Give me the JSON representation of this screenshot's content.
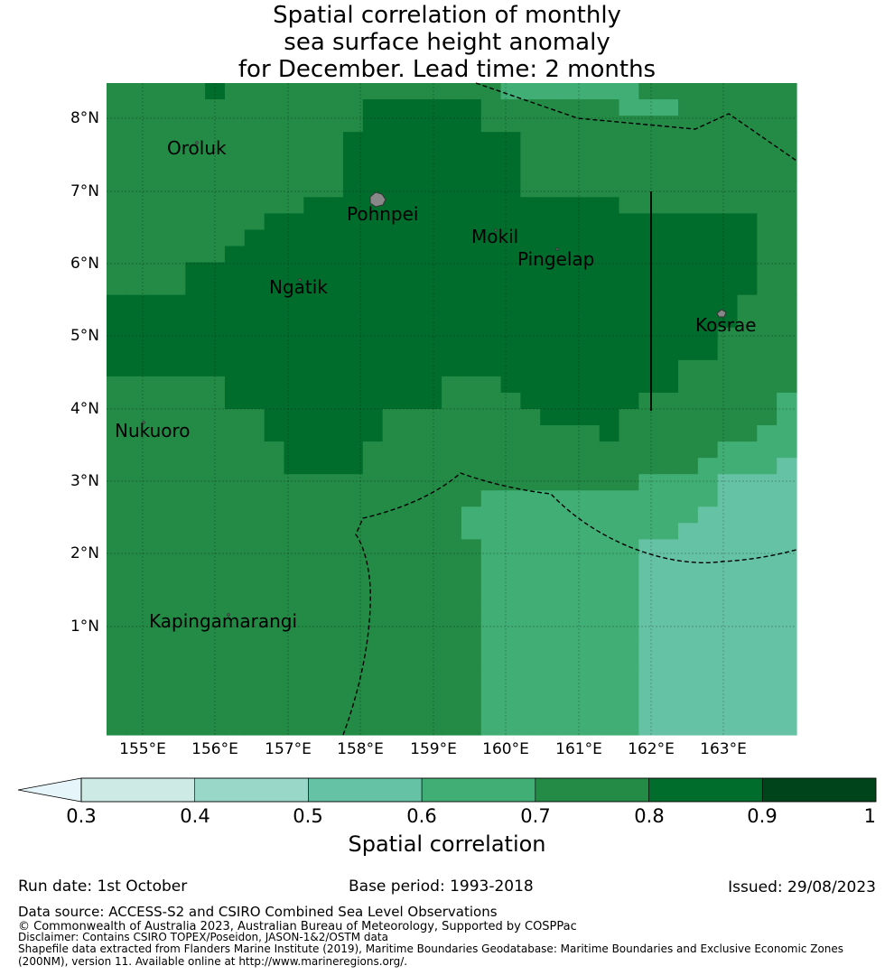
{
  "title_lines": [
    "Spatial correlation of monthly",
    "sea surface height anomaly",
    "for December. Lead time: 2 months"
  ],
  "lon_labels": [
    "155°E",
    "156°E",
    "157°E",
    "158°E",
    "159°E",
    "160°E",
    "161°E",
    "162°E",
    "163°E"
  ],
  "lat_labels": [
    "8°N",
    "7°N",
    "6°N",
    "5°N",
    "4°N",
    "3°N",
    "2°N",
    "1°N"
  ],
  "places": {
    "oroluk": "Oroluk",
    "pohnpei": "Pohnpei",
    "mokil": "Mokil",
    "pingelap": "Pingelap",
    "ngatik": "Ngatik",
    "kosrae": "Kosrae",
    "nukuoro": "Nukuoro",
    "kapingamarangi": "Kapingamarangi"
  },
  "colorbar": {
    "ticks": [
      "0.3",
      "0.4",
      "0.5",
      "0.6",
      "0.7",
      "0.8",
      "0.9",
      "1"
    ],
    "label": "Spatial correlation",
    "colors": [
      "#cdebe4",
      "#99d8c9",
      "#66c2a4",
      "#41ae76",
      "#238b45",
      "#006d2c",
      "#00441b"
    ],
    "under_color": "#e5f5f9"
  },
  "footer": {
    "run_date": "Run date: 1st October",
    "base_period": "Base period: 1993-2018",
    "issued": "Issued: 29/08/2023",
    "data_source": "Data source: ACCESS-S2 and CSIRO Combined Sea Level Observations",
    "copyright": "© Commonwealth of Australia 2023, Australian Bureau of Meteorology, Supported by COSPPac",
    "disclaimer": "Disclaimer: Contains CSIRO TOPEX/Poseidon, JASON-1&2/OSTM data",
    "shapefile_1": "Shapefile data extracted from Flanders Marine Institute (2019), Maritime Boundaries Geodatabase: Maritime Boundaries and Exclusive Economic Zones",
    "shapefile_2": "(200NM), version 11. Available online at http://www.marineregions.org/."
  },
  "grid_levels": [
    "55555655555555555555444444455555555",
    "55555555555556666665555555444555555",
    "55555555555556666665555555555555555",
    "55555555555566666666655555555555555",
    "55555555555566666666655555555555555",
    "55555555555566666666655555555555555",
    "55555555555566666666655555555555555",
    "55555555556666666666666666555555555",
    "55555555666666666666666666666666655",
    "55555556666666666666666666666666655",
    "55555566666666666666666666666666655",
    "55556666666666666666666666666666655",
    "55556666666666666666666666666666655",
    "66666666666666666666666666666666555",
    "66666666666666666666666666666666555",
    "66666666666666666666666666666665555",
    "66666666666666666666666666666665555",
    "66666666666666666666666666666555555",
    "55555566666666666555666666666555555",
    "55555566666666666555566666655555554",
    "55555555666666555555556666555555554",
    "55555555666666555555555556555555544",
    "55555555566665555555555555555554444",
    "55555555566665555555555555555544443",
    "55555555555555555555555555544443333",
    "55555555555555555554444444444443333",
    "55555555555555555544444444444433333",
    "55555555555555555544444444444333333",
    "55555555555555555554444444433333333",
    "55555555555555555554444444433333333",
    "55555555555555555554444444433333333",
    "55555555555555555554444444433333333",
    "55555555555555555554444444433333333",
    "55555555555555555554444444433333333",
    "55555555555555555554444444433333333",
    "55555555555555555554444444433333333",
    "55555555555555555554444444433333333",
    "55555555555555555554444444433333333",
    "55555555555555555554444444433333333",
    "55555555555555555554444444433333333"
  ]
}
